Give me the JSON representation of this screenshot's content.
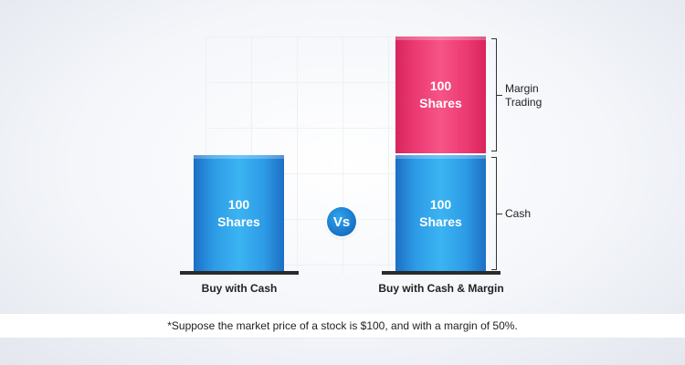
{
  "left_stack": {
    "cash_bar": {
      "line1": "100",
      "line2": "Shares"
    },
    "label": "Buy with Cash"
  },
  "vs_label": "Vs",
  "right_stack": {
    "margin_bar": {
      "line1": "100",
      "line2": "Shares"
    },
    "cash_bar": {
      "line1": "100",
      "line2": "Shares"
    },
    "label": "Buy with Cash & Margin",
    "braces": {
      "margin_line1": "Margin",
      "margin_line2": "Trading",
      "cash": "Cash"
    }
  },
  "footnote": "*Suppose the market price of a stock is $100, and with a margin of 50%.",
  "colors": {
    "blue": "#2d9be6",
    "pink": "#ec3a73",
    "base": "#2a2a2a"
  }
}
